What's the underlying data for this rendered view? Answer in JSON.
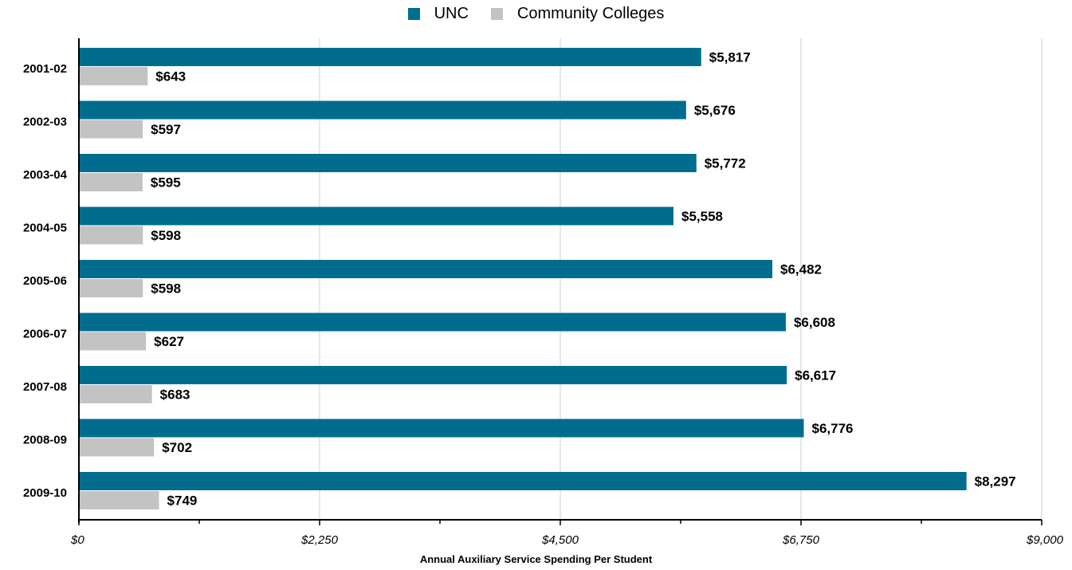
{
  "chart_data": {
    "type": "bar",
    "orientation": "horizontal",
    "categories": [
      "2001-02",
      "2002-03",
      "2003-04",
      "2004-05",
      "2005-06",
      "2006-07",
      "2007-08",
      "2008-09",
      "2009-10"
    ],
    "series": [
      {
        "name": "UNC",
        "color": "#006d8f",
        "values": [
          5817,
          5676,
          5772,
          5558,
          6482,
          6608,
          6617,
          6776,
          8297
        ],
        "labels": [
          "$5,817",
          "$5,676",
          "$5,772",
          "$5,558",
          "$6,482",
          "$6,608",
          "$6,617",
          "$6,776",
          "$8,297"
        ]
      },
      {
        "name": "Community Colleges",
        "color": "#c3c3c3",
        "values": [
          643,
          597,
          595,
          598,
          598,
          627,
          683,
          702,
          749
        ],
        "labels": [
          "$643",
          "$597",
          "$595",
          "$598",
          "$598",
          "$627",
          "$683",
          "$702",
          "$749"
        ]
      }
    ],
    "xlabel": "Annual Auxiliary Service Spending Per Student",
    "xlim": [
      0,
      9000
    ],
    "xticks": [
      0,
      2250,
      4500,
      6750,
      9000
    ],
    "xtick_labels": [
      "$0",
      "$2,250",
      "$4,500",
      "$6,750",
      "$9,000"
    ],
    "grid": true,
    "legend_position": "top-center"
  }
}
